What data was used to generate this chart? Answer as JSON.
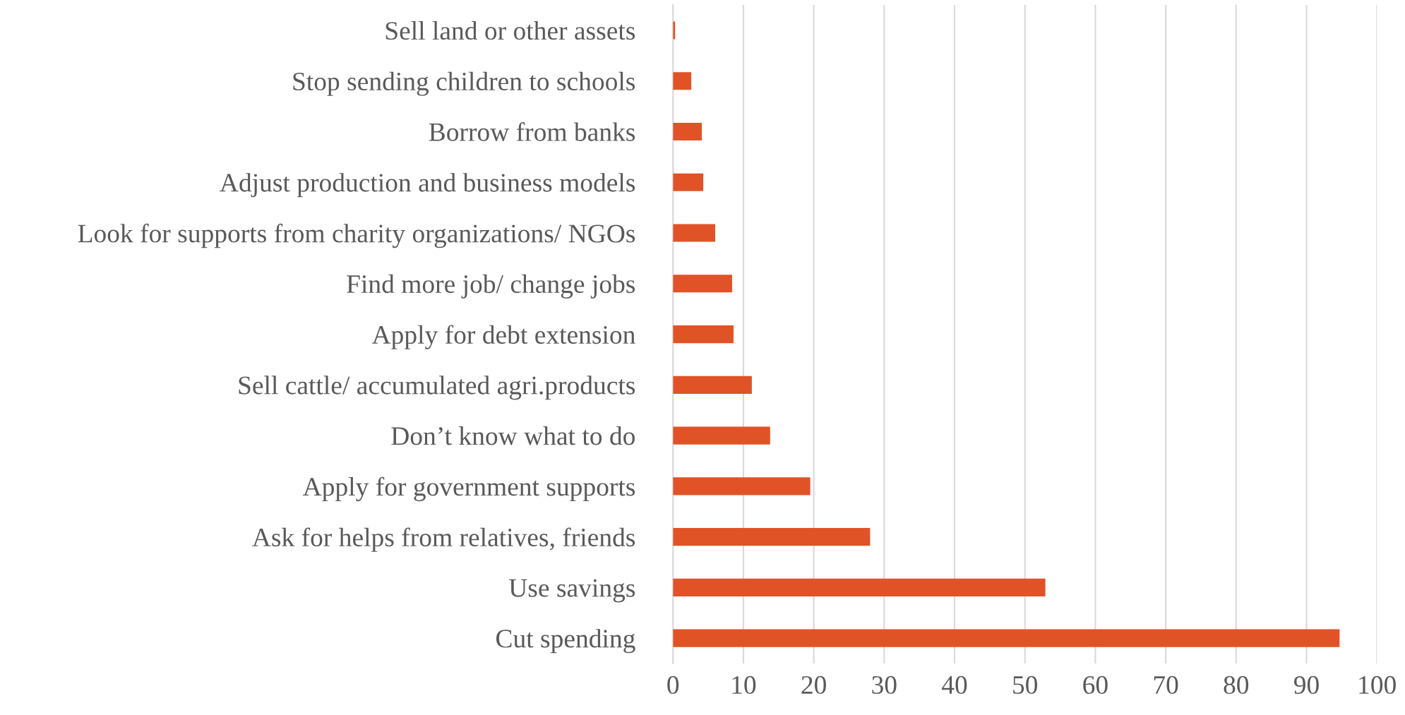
{
  "chart_data": {
    "type": "bar",
    "orientation": "horizontal",
    "categories": [
      "Sell land or other assets",
      "Stop sending children to schools",
      "Borrow from banks",
      "Adjust production and business models",
      "Look for supports from charity organizations/ NGOs",
      "Find more job/ change jobs",
      "Apply for debt extension",
      "Sell cattle/ accumulated agri.products",
      "Don’t know what to do",
      "Apply for government supports",
      "Ask for helps from relatives, friends",
      "Use savings",
      "Cut spending"
    ],
    "values": [
      0.3,
      2.6,
      4.1,
      4.3,
      6.0,
      8.4,
      8.6,
      11.2,
      13.8,
      19.5,
      28.0,
      52.9,
      94.7
    ],
    "color": "#e05327",
    "xlim": [
      0,
      100
    ],
    "xticks": [
      0,
      10,
      20,
      30,
      40,
      50,
      60,
      70,
      80,
      90,
      100
    ],
    "grid": "x"
  }
}
